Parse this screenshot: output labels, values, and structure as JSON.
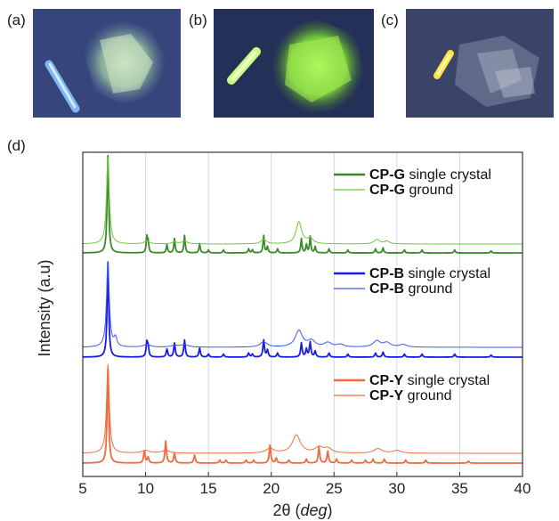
{
  "panels": {
    "a": "(a)",
    "b": "(b)",
    "c": "(c)",
    "d": "(d)"
  },
  "colors": {
    "green_crystal": "#3a8a2a",
    "green_ground": "#6ec93a",
    "blue_crystal": "#1a1ae6",
    "blue_ground": "#3a5aee",
    "orange_crystal": "#f06a3a",
    "orange_ground": "#ee6e3e",
    "grid": "#c9cfe6"
  },
  "chart_data": {
    "type": "line",
    "xlabel": "2θ (deg)",
    "xlabel_main": "2θ",
    "xlabel_unit": "deg",
    "ylabel": "Intensity (a.u)",
    "xlim": [
      5,
      40
    ],
    "xticks": [
      5,
      10,
      15,
      20,
      25,
      30,
      35,
      40
    ],
    "grid": "vertical",
    "legend_position": "top-right of each stacked trace",
    "groups": [
      {
        "compound": "CP-G",
        "color_key": "green",
        "series": [
          {
            "name": "CP-G single crystal",
            "compound": "CP-G",
            "label": "single crystal",
            "kind": "crystal",
            "peaks": [
              [
                7.0,
                95
              ],
              [
                10.1,
                15
              ],
              [
                10.2,
                10
              ],
              [
                11.7,
                8
              ],
              [
                12.3,
                14
              ],
              [
                13.1,
                17
              ],
              [
                14.3,
                9
              ],
              [
                15.0,
                3
              ],
              [
                16.2,
                3
              ],
              [
                18.2,
                4
              ],
              [
                18.5,
                3
              ],
              [
                19.4,
                17
              ],
              [
                19.7,
                6
              ],
              [
                20.5,
                4
              ],
              [
                22.4,
                14
              ],
              [
                22.8,
                8
              ],
              [
                23.1,
                16
              ],
              [
                23.5,
                6
              ],
              [
                24.6,
                4
              ],
              [
                26.1,
                3
              ],
              [
                28.3,
                4
              ],
              [
                28.9,
                5
              ],
              [
                30.6,
                3
              ],
              [
                32.0,
                3
              ],
              [
                34.6,
                3
              ],
              [
                37.5,
                2
              ]
            ]
          },
          {
            "name": "CP-G ground",
            "compound": "CP-G",
            "label": "ground",
            "kind": "ground",
            "peaks": [
              [
                7.0,
                98
              ],
              [
                10.1,
                3
              ],
              [
                12.3,
                2
              ],
              [
                13.1,
                3
              ],
              [
                19.4,
                5
              ],
              [
                22.2,
                25
              ],
              [
                23.1,
                6
              ],
              [
                28.4,
                5
              ],
              [
                29.2,
                3
              ]
            ]
          }
        ]
      },
      {
        "compound": "CP-B",
        "color_key": "blue",
        "series": [
          {
            "name": "CP-B single crystal",
            "compound": "CP-B",
            "label": "single crystal",
            "kind": "crystal",
            "peaks": [
              [
                7.0,
                95
              ],
              [
                10.1,
                14
              ],
              [
                10.2,
                9
              ],
              [
                11.7,
                8
              ],
              [
                12.3,
                14
              ],
              [
                13.1,
                17
              ],
              [
                14.3,
                9
              ],
              [
                15.0,
                3
              ],
              [
                16.2,
                3
              ],
              [
                18.2,
                4
              ],
              [
                18.5,
                3
              ],
              [
                19.4,
                17
              ],
              [
                19.7,
                7
              ],
              [
                20.5,
                4
              ],
              [
                22.4,
                14
              ],
              [
                22.8,
                8
              ],
              [
                23.1,
                15
              ],
              [
                23.5,
                6
              ],
              [
                24.6,
                4
              ],
              [
                26.1,
                3
              ],
              [
                28.3,
                4
              ],
              [
                28.9,
                5
              ],
              [
                30.6,
                3
              ],
              [
                32.0,
                3
              ],
              [
                34.6,
                3
              ],
              [
                37.5,
                2
              ]
            ]
          },
          {
            "name": "CP-B ground",
            "compound": "CP-B",
            "label": "ground",
            "kind": "ground",
            "peaks": [
              [
                7.0,
                98
              ],
              [
                7.6,
                10
              ],
              [
                10.1,
                3
              ],
              [
                12.3,
                2
              ],
              [
                13.1,
                3
              ],
              [
                19.4,
                6
              ],
              [
                22.2,
                19
              ],
              [
                23.2,
                7
              ],
              [
                24.5,
                5
              ],
              [
                25.5,
                3
              ],
              [
                28.4,
                7
              ],
              [
                29.2,
                5
              ],
              [
                30.5,
                3
              ]
            ]
          }
        ]
      },
      {
        "compound": "CP-Y",
        "color_key": "orange",
        "series": [
          {
            "name": "CP-Y single crystal",
            "compound": "CP-Y",
            "label": "single crystal",
            "kind": "crystal",
            "peaks": [
              [
                7.0,
                95
              ],
              [
                9.9,
                12
              ],
              [
                10.2,
                6
              ],
              [
                11.6,
                22
              ],
              [
                12.3,
                10
              ],
              [
                13.9,
                8
              ],
              [
                15.9,
                3
              ],
              [
                16.4,
                3
              ],
              [
                18.0,
                3
              ],
              [
                18.6,
                3
              ],
              [
                19.9,
                18
              ],
              [
                20.4,
                5
              ],
              [
                21.4,
                3
              ],
              [
                22.8,
                4
              ],
              [
                23.8,
                16
              ],
              [
                24.5,
                12
              ],
              [
                25.2,
                4
              ],
              [
                26.4,
                3
              ],
              [
                27.5,
                3
              ],
              [
                28.1,
                4
              ],
              [
                29.0,
                4
              ],
              [
                30.7,
                3
              ],
              [
                32.3,
                3
              ],
              [
                35.7,
                2
              ]
            ]
          },
          {
            "name": "CP-Y ground",
            "compound": "CP-Y",
            "label": "ground",
            "kind": "ground",
            "peaks": [
              [
                7.0,
                98
              ],
              [
                10.0,
                3
              ],
              [
                11.6,
                3
              ],
              [
                19.9,
                5
              ],
              [
                22.0,
                20
              ],
              [
                23.8,
                6
              ],
              [
                24.5,
                5
              ],
              [
                28.5,
                5
              ],
              [
                30.0,
                3
              ]
            ]
          }
        ]
      }
    ]
  }
}
